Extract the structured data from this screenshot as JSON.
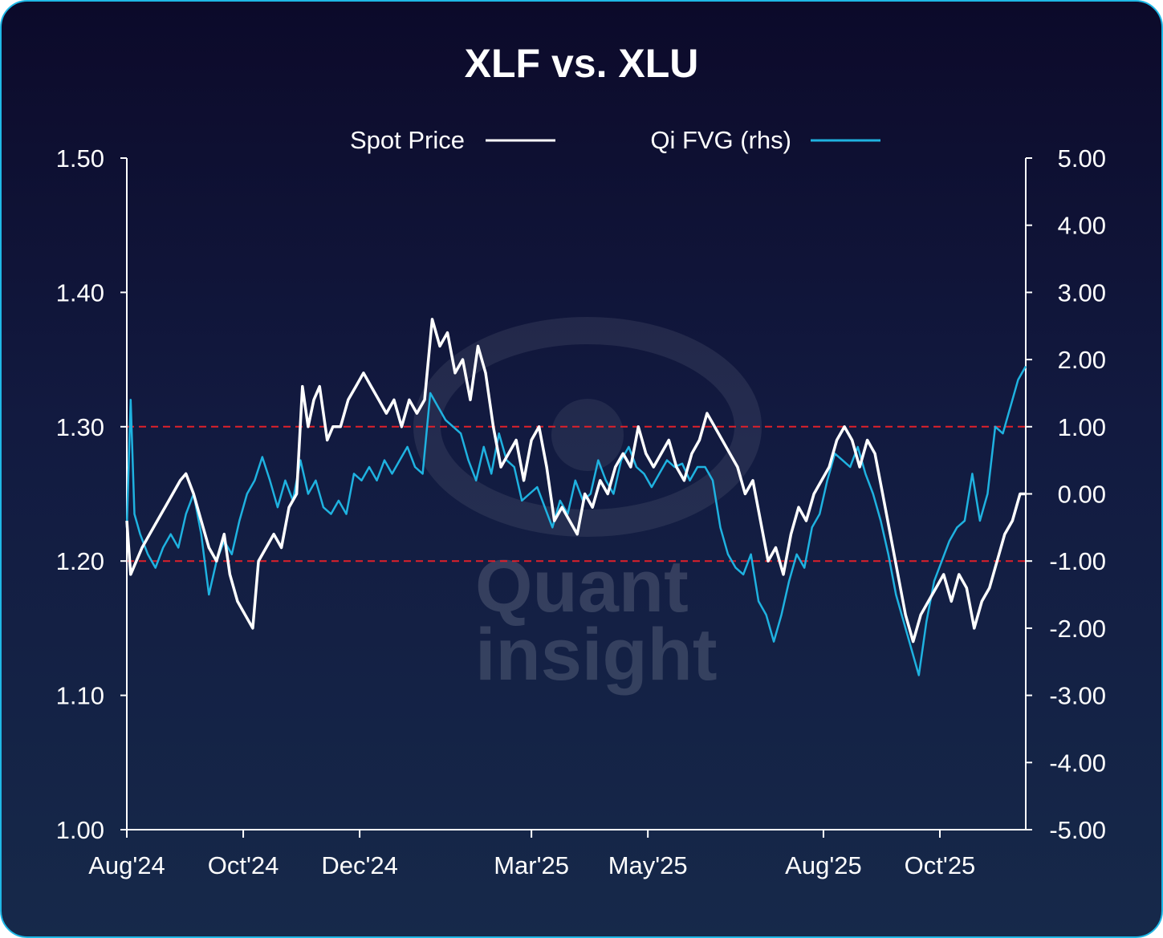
{
  "chart_data": {
    "type": "line",
    "title": "XLF vs. XLU",
    "watermark": [
      "Quant",
      "insight"
    ],
    "x_start": "2024-08-01",
    "x_end": "2025-11-15",
    "x_ticks": [
      {
        "date": "2024-08-01",
        "label": "Aug'24"
      },
      {
        "date": "2024-10-01",
        "label": "Oct'24"
      },
      {
        "date": "2024-12-01",
        "label": "Dec'24"
      },
      {
        "date": "2025-03-01",
        "label": "Mar'25"
      },
      {
        "date": "2025-05-01",
        "label": "May'25"
      },
      {
        "date": "2025-08-01",
        "label": "Aug'25"
      },
      {
        "date": "2025-10-01",
        "label": "Oct'25"
      }
    ],
    "y_left": {
      "min": 1.0,
      "max": 1.5,
      "ticks": [
        "1.00",
        "1.10",
        "1.20",
        "1.30",
        "1.40",
        "1.50"
      ]
    },
    "y_right": {
      "min": -5,
      "max": 5,
      "ticks": [
        "-5.00",
        "-4.00",
        "-3.00",
        "-2.00",
        "-1.00",
        "0.00",
        "1.00",
        "2.00",
        "3.00",
        "4.00",
        "5.00"
      ]
    },
    "reference_lines": [
      {
        "axis": "right",
        "value": 1.0
      },
      {
        "axis": "right",
        "value": -1.0
      }
    ],
    "legend": {
      "placement": "top-center"
    },
    "colors": {
      "spot": "#ffffff",
      "fvg": "#1fb2e0",
      "reference": "#e0202a",
      "axis": "#ffffff"
    },
    "series": [
      {
        "name": "Spot Price",
        "axis": "left",
        "points": [
          [
            "2024-08-01",
            1.23
          ],
          [
            "2024-08-03",
            1.19
          ],
          [
            "2024-08-06",
            1.2
          ],
          [
            "2024-08-09",
            1.21
          ],
          [
            "2024-08-13",
            1.22
          ],
          [
            "2024-08-17",
            1.23
          ],
          [
            "2024-08-21",
            1.24
          ],
          [
            "2024-08-25",
            1.25
          ],
          [
            "2024-08-29",
            1.26
          ],
          [
            "2024-09-01",
            1.265
          ],
          [
            "2024-09-05",
            1.25
          ],
          [
            "2024-09-09",
            1.23
          ],
          [
            "2024-09-13",
            1.21
          ],
          [
            "2024-09-17",
            1.2
          ],
          [
            "2024-09-21",
            1.22
          ],
          [
            "2024-09-24",
            1.19
          ],
          [
            "2024-09-28",
            1.17
          ],
          [
            "2024-10-02",
            1.16
          ],
          [
            "2024-10-06",
            1.15
          ],
          [
            "2024-10-09",
            1.2
          ],
          [
            "2024-10-13",
            1.21
          ],
          [
            "2024-10-17",
            1.22
          ],
          [
            "2024-10-21",
            1.21
          ],
          [
            "2024-10-25",
            1.24
          ],
          [
            "2024-10-29",
            1.25
          ],
          [
            "2024-11-01",
            1.33
          ],
          [
            "2024-11-04",
            1.3
          ],
          [
            "2024-11-07",
            1.32
          ],
          [
            "2024-11-10",
            1.33
          ],
          [
            "2024-11-14",
            1.29
          ],
          [
            "2024-11-17",
            1.3
          ],
          [
            "2024-11-21",
            1.3
          ],
          [
            "2024-11-25",
            1.32
          ],
          [
            "2024-11-29",
            1.33
          ],
          [
            "2024-12-03",
            1.34
          ],
          [
            "2024-12-07",
            1.33
          ],
          [
            "2024-12-11",
            1.32
          ],
          [
            "2024-12-15",
            1.31
          ],
          [
            "2024-12-19",
            1.32
          ],
          [
            "2024-12-23",
            1.3
          ],
          [
            "2024-12-27",
            1.32
          ],
          [
            "2024-12-31",
            1.31
          ],
          [
            "2025-01-04",
            1.32
          ],
          [
            "2025-01-08",
            1.38
          ],
          [
            "2025-01-12",
            1.36
          ],
          [
            "2025-01-16",
            1.37
          ],
          [
            "2025-01-20",
            1.34
          ],
          [
            "2025-01-24",
            1.35
          ],
          [
            "2025-01-28",
            1.32
          ],
          [
            "2025-02-01",
            1.36
          ],
          [
            "2025-02-05",
            1.34
          ],
          [
            "2025-02-09",
            1.3
          ],
          [
            "2025-02-13",
            1.27
          ],
          [
            "2025-02-17",
            1.28
          ],
          [
            "2025-02-21",
            1.29
          ],
          [
            "2025-02-25",
            1.26
          ],
          [
            "2025-03-01",
            1.29
          ],
          [
            "2025-03-05",
            1.3
          ],
          [
            "2025-03-09",
            1.27
          ],
          [
            "2025-03-13",
            1.23
          ],
          [
            "2025-03-17",
            1.24
          ],
          [
            "2025-03-21",
            1.23
          ],
          [
            "2025-03-25",
            1.22
          ],
          [
            "2025-03-29",
            1.25
          ],
          [
            "2025-04-02",
            1.24
          ],
          [
            "2025-04-06",
            1.26
          ],
          [
            "2025-04-10",
            1.25
          ],
          [
            "2025-04-14",
            1.27
          ],
          [
            "2025-04-18",
            1.28
          ],
          [
            "2025-04-22",
            1.27
          ],
          [
            "2025-04-26",
            1.3
          ],
          [
            "2025-04-30",
            1.28
          ],
          [
            "2025-05-04",
            1.27
          ],
          [
            "2025-05-08",
            1.28
          ],
          [
            "2025-05-12",
            1.29
          ],
          [
            "2025-05-16",
            1.27
          ],
          [
            "2025-05-20",
            1.26
          ],
          [
            "2025-05-24",
            1.28
          ],
          [
            "2025-05-28",
            1.29
          ],
          [
            "2025-06-01",
            1.31
          ],
          [
            "2025-06-05",
            1.3
          ],
          [
            "2025-06-09",
            1.29
          ],
          [
            "2025-06-13",
            1.28
          ],
          [
            "2025-06-17",
            1.27
          ],
          [
            "2025-06-21",
            1.25
          ],
          [
            "2025-06-25",
            1.26
          ],
          [
            "2025-06-29",
            1.23
          ],
          [
            "2025-07-03",
            1.2
          ],
          [
            "2025-07-07",
            1.21
          ],
          [
            "2025-07-11",
            1.19
          ],
          [
            "2025-07-15",
            1.22
          ],
          [
            "2025-07-19",
            1.24
          ],
          [
            "2025-07-23",
            1.23
          ],
          [
            "2025-07-27",
            1.25
          ],
          [
            "2025-07-31",
            1.26
          ],
          [
            "2025-08-04",
            1.27
          ],
          [
            "2025-08-08",
            1.29
          ],
          [
            "2025-08-12",
            1.3
          ],
          [
            "2025-08-16",
            1.29
          ],
          [
            "2025-08-20",
            1.27
          ],
          [
            "2025-08-24",
            1.29
          ],
          [
            "2025-08-28",
            1.28
          ],
          [
            "2025-09-01",
            1.25
          ],
          [
            "2025-09-05",
            1.22
          ],
          [
            "2025-09-09",
            1.19
          ],
          [
            "2025-09-13",
            1.16
          ],
          [
            "2025-09-17",
            1.14
          ],
          [
            "2025-09-21",
            1.16
          ],
          [
            "2025-09-25",
            1.17
          ],
          [
            "2025-09-29",
            1.18
          ],
          [
            "2025-10-03",
            1.19
          ],
          [
            "2025-10-07",
            1.17
          ],
          [
            "2025-10-11",
            1.19
          ],
          [
            "2025-10-15",
            1.18
          ],
          [
            "2025-10-19",
            1.15
          ],
          [
            "2025-10-23",
            1.17
          ],
          [
            "2025-10-27",
            1.18
          ],
          [
            "2025-10-31",
            1.2
          ],
          [
            "2025-11-04",
            1.22
          ],
          [
            "2025-11-08",
            1.23
          ],
          [
            "2025-11-12",
            1.25
          ],
          [
            "2025-11-15",
            1.25
          ]
        ]
      },
      {
        "name": "Qi FVG  (rhs)",
        "axis": "right",
        "points": [
          [
            "2024-08-01",
            -0.5
          ],
          [
            "2024-08-03",
            1.4
          ],
          [
            "2024-08-05",
            -0.3
          ],
          [
            "2024-08-08",
            -0.6
          ],
          [
            "2024-08-12",
            -0.9
          ],
          [
            "2024-08-16",
            -1.1
          ],
          [
            "2024-08-20",
            -0.8
          ],
          [
            "2024-08-24",
            -0.6
          ],
          [
            "2024-08-28",
            -0.8
          ],
          [
            "2024-09-01",
            -0.3
          ],
          [
            "2024-09-05",
            0.0
          ],
          [
            "2024-09-09",
            -0.6
          ],
          [
            "2024-09-13",
            -1.5
          ],
          [
            "2024-09-17",
            -1.0
          ],
          [
            "2024-09-21",
            -0.7
          ],
          [
            "2024-09-25",
            -0.9
          ],
          [
            "2024-09-29",
            -0.4
          ],
          [
            "2024-10-03",
            0.0
          ],
          [
            "2024-10-07",
            0.2
          ],
          [
            "2024-10-11",
            0.55
          ],
          [
            "2024-10-15",
            0.2
          ],
          [
            "2024-10-19",
            -0.2
          ],
          [
            "2024-10-23",
            0.2
          ],
          [
            "2024-10-27",
            -0.1
          ],
          [
            "2024-10-31",
            0.5
          ],
          [
            "2024-11-04",
            0.0
          ],
          [
            "2024-11-08",
            0.2
          ],
          [
            "2024-11-12",
            -0.2
          ],
          [
            "2024-11-16",
            -0.3
          ],
          [
            "2024-11-20",
            -0.1
          ],
          [
            "2024-11-24",
            -0.3
          ],
          [
            "2024-11-28",
            0.3
          ],
          [
            "2024-12-02",
            0.2
          ],
          [
            "2024-12-06",
            0.4
          ],
          [
            "2024-12-10",
            0.2
          ],
          [
            "2024-12-14",
            0.5
          ],
          [
            "2024-12-18",
            0.3
          ],
          [
            "2024-12-22",
            0.5
          ],
          [
            "2024-12-26",
            0.7
          ],
          [
            "2024-12-30",
            0.4
          ],
          [
            "2025-01-03",
            0.3
          ],
          [
            "2025-01-07",
            1.5
          ],
          [
            "2025-01-11",
            1.3
          ],
          [
            "2025-01-15",
            1.1
          ],
          [
            "2025-01-19",
            1.0
          ],
          [
            "2025-01-23",
            0.9
          ],
          [
            "2025-01-27",
            0.5
          ],
          [
            "2025-01-31",
            0.2
          ],
          [
            "2025-02-04",
            0.7
          ],
          [
            "2025-02-08",
            0.3
          ],
          [
            "2025-02-12",
            0.9
          ],
          [
            "2025-02-16",
            0.5
          ],
          [
            "2025-02-20",
            0.4
          ],
          [
            "2025-02-24",
            -0.1
          ],
          [
            "2025-02-28",
            0.0
          ],
          [
            "2025-03-04",
            0.1
          ],
          [
            "2025-03-08",
            -0.2
          ],
          [
            "2025-03-12",
            -0.5
          ],
          [
            "2025-03-16",
            -0.1
          ],
          [
            "2025-03-20",
            -0.3
          ],
          [
            "2025-03-24",
            0.2
          ],
          [
            "2025-03-28",
            -0.1
          ],
          [
            "2025-04-01",
            0.0
          ],
          [
            "2025-04-05",
            0.5
          ],
          [
            "2025-04-09",
            0.2
          ],
          [
            "2025-04-13",
            0.0
          ],
          [
            "2025-04-17",
            0.5
          ],
          [
            "2025-04-21",
            0.7
          ],
          [
            "2025-04-25",
            0.4
          ],
          [
            "2025-04-29",
            0.3
          ],
          [
            "2025-05-03",
            0.1
          ],
          [
            "2025-05-07",
            0.3
          ],
          [
            "2025-05-11",
            0.5
          ],
          [
            "2025-05-15",
            0.4
          ],
          [
            "2025-05-19",
            0.45
          ],
          [
            "2025-05-23",
            0.2
          ],
          [
            "2025-05-27",
            0.4
          ],
          [
            "2025-05-31",
            0.4
          ],
          [
            "2025-06-04",
            0.2
          ],
          [
            "2025-06-08",
            -0.5
          ],
          [
            "2025-06-12",
            -0.9
          ],
          [
            "2025-06-16",
            -1.1
          ],
          [
            "2025-06-20",
            -1.2
          ],
          [
            "2025-06-24",
            -0.9
          ],
          [
            "2025-06-28",
            -1.6
          ],
          [
            "2025-07-02",
            -1.8
          ],
          [
            "2025-07-06",
            -2.2
          ],
          [
            "2025-07-10",
            -1.8
          ],
          [
            "2025-07-14",
            -1.3
          ],
          [
            "2025-07-18",
            -0.9
          ],
          [
            "2025-07-22",
            -1.1
          ],
          [
            "2025-07-26",
            -0.5
          ],
          [
            "2025-07-30",
            -0.3
          ],
          [
            "2025-08-03",
            0.2
          ],
          [
            "2025-08-07",
            0.6
          ],
          [
            "2025-08-11",
            0.5
          ],
          [
            "2025-08-15",
            0.4
          ],
          [
            "2025-08-19",
            0.7
          ],
          [
            "2025-08-23",
            0.3
          ],
          [
            "2025-08-27",
            0.0
          ],
          [
            "2025-08-31",
            -0.4
          ],
          [
            "2025-09-04",
            -0.9
          ],
          [
            "2025-09-08",
            -1.5
          ],
          [
            "2025-09-12",
            -1.9
          ],
          [
            "2025-09-16",
            -2.3
          ],
          [
            "2025-09-20",
            -2.7
          ],
          [
            "2025-09-24",
            -1.9
          ],
          [
            "2025-09-28",
            -1.3
          ],
          [
            "2025-10-02",
            -1.0
          ],
          [
            "2025-10-06",
            -0.7
          ],
          [
            "2025-10-10",
            -0.5
          ],
          [
            "2025-10-14",
            -0.4
          ],
          [
            "2025-10-18",
            0.3
          ],
          [
            "2025-10-22",
            -0.4
          ],
          [
            "2025-10-26",
            0.0
          ],
          [
            "2025-10-30",
            1.0
          ],
          [
            "2025-11-03",
            0.9
          ],
          [
            "2025-11-07",
            1.3
          ],
          [
            "2025-11-11",
            1.7
          ],
          [
            "2025-11-15",
            1.9
          ]
        ]
      }
    ]
  }
}
